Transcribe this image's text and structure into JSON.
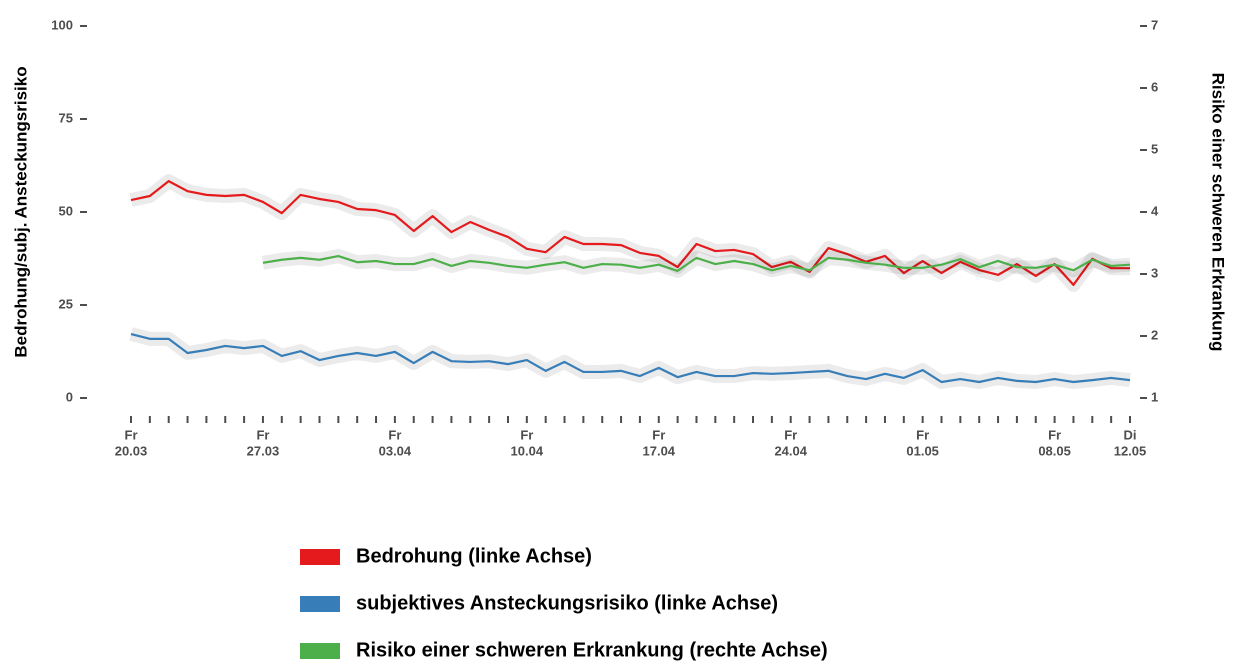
{
  "chart_data": {
    "type": "line",
    "ylabel": "Bedrohung/subj. Ansteckungsrisiko",
    "y2label": "Risiko einer schweren Erkrankung",
    "ylim": [
      0,
      100
    ],
    "yticks": [
      0,
      25,
      50,
      75,
      100
    ],
    "y2lim": [
      1,
      7
    ],
    "y2ticks": [
      1,
      2,
      3,
      4,
      5,
      6,
      7
    ],
    "x": [
      "20.03",
      "21.03",
      "22.03",
      "23.03",
      "24.03",
      "25.03",
      "26.03",
      "27.03",
      "28.03",
      "29.03",
      "30.03",
      "31.03",
      "01.04",
      "02.04",
      "03.04",
      "04.04",
      "05.04",
      "06.04",
      "07.04",
      "08.04",
      "09.04",
      "10.04",
      "11.04",
      "12.04",
      "13.04",
      "14.04",
      "15.04",
      "16.04",
      "17.04",
      "18.04",
      "19.04",
      "20.04",
      "21.04",
      "22.04",
      "23.04",
      "24.04",
      "25.04",
      "26.04",
      "27.04",
      "28.04",
      "29.04",
      "30.04",
      "01.05",
      "02.05",
      "03.05",
      "04.05",
      "05.05",
      "06.05",
      "07.05",
      "08.05",
      "09.05",
      "10.05",
      "11.05",
      "12.05"
    ],
    "xticks": [
      {
        "value": "20.03",
        "weekday": "Fr"
      },
      {
        "value": "27.03",
        "weekday": "Fr"
      },
      {
        "value": "03.04",
        "weekday": "Fr"
      },
      {
        "value": "10.04",
        "weekday": "Fr"
      },
      {
        "value": "17.04",
        "weekday": "Fr"
      },
      {
        "value": "24.04",
        "weekday": "Fr"
      },
      {
        "value": "01.05",
        "weekday": "Fr"
      },
      {
        "value": "08.05",
        "weekday": "Fr"
      },
      {
        "value": "12.05",
        "weekday": "Di"
      }
    ],
    "series": [
      {
        "name": "Bedrohung (linke Achse)",
        "color": "#e41a1c",
        "values": [
          53.2,
          54.3,
          58.3,
          55.6,
          54.6,
          54.3,
          54.6,
          52.7,
          49.7,
          54.6,
          53.5,
          52.7,
          50.8,
          50.5,
          49.2,
          44.9,
          48.9,
          44.6,
          47.3,
          45.2,
          43.3,
          40.1,
          39.2,
          43.3,
          41.4,
          41.4,
          41.1,
          39.0,
          38.2,
          35.2,
          41.4,
          39.5,
          39.8,
          38.7,
          35.2,
          36.6,
          33.9,
          40.3,
          38.7,
          36.6,
          38.2,
          33.6,
          36.8,
          33.6,
          36.6,
          34.4,
          33.1,
          36.0,
          32.8,
          36.0,
          30.4,
          37.4,
          34.9,
          34.9
        ]
      },
      {
        "name": "subjektives Ansteckungsrisiko (linke Achse)",
        "color": "#377eb8",
        "values": [
          17.2,
          15.9,
          15.9,
          12.1,
          12.9,
          14.0,
          13.4,
          14.0,
          11.3,
          12.6,
          10.2,
          11.3,
          12.1,
          11.3,
          12.4,
          9.4,
          12.4,
          9.9,
          9.7,
          9.9,
          9.1,
          10.2,
          7.3,
          9.7,
          7.0,
          7.0,
          7.3,
          5.9,
          8.1,
          5.6,
          7.0,
          5.9,
          5.9,
          6.7,
          6.5,
          6.7,
          7.0,
          7.3,
          5.9,
          5.1,
          6.5,
          5.4,
          7.5,
          4.3,
          5.1,
          4.3,
          5.4,
          4.6,
          4.3,
          5.1,
          4.3,
          4.8,
          5.4,
          4.8
        ]
      },
      {
        "name": "Risiko einer schweren Erkrankung (rechte Achse)",
        "color": "#4daf4a",
        "axis": "y2",
        "values": [
          null,
          null,
          null,
          null,
          null,
          null,
          null,
          3.18,
          3.23,
          3.26,
          3.23,
          3.29,
          3.19,
          3.21,
          3.16,
          3.16,
          3.24,
          3.13,
          3.21,
          3.18,
          3.13,
          3.1,
          3.15,
          3.19,
          3.1,
          3.16,
          3.15,
          3.1,
          3.15,
          3.05,
          3.26,
          3.16,
          3.21,
          3.16,
          3.06,
          3.13,
          3.06,
          3.26,
          3.23,
          3.18,
          3.15,
          3.1,
          3.1,
          3.15,
          3.24,
          3.11,
          3.21,
          3.11,
          3.1,
          3.15,
          3.06,
          3.23,
          3.13,
          3.15
        ]
      }
    ]
  }
}
